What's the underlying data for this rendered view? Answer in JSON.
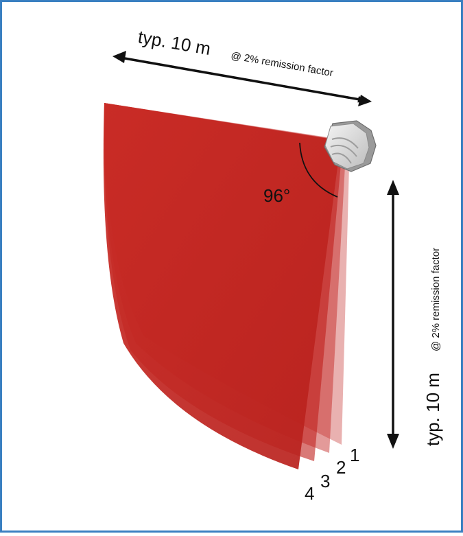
{
  "colors": {
    "border": "#3a7fc1",
    "scan_fill": "#c0201d",
    "sensor_body": "#e4e4e4",
    "sensor_edge": "#8a8a8a",
    "arrow": "#111111"
  },
  "horizontal_range": {
    "main": "typ. 10 m",
    "note": "@ 2% remission factor"
  },
  "vertical_range": {
    "main": "typ. 10 m",
    "note": "@ 2% remission factor"
  },
  "angle_label": "96°",
  "scan_planes": [
    {
      "label": "1",
      "opacity": 0.35
    },
    {
      "label": "2",
      "opacity": 0.45
    },
    {
      "label": "3",
      "opacity": 0.6
    },
    {
      "label": "4",
      "opacity": 0.92
    }
  ]
}
